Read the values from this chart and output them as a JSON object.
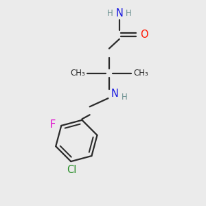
{
  "bg_color": "#ebebeb",
  "bond_color": "#2a2a2a",
  "bond_width": 1.6,
  "atom_colors": {
    "N": "#1414e0",
    "O": "#ff1500",
    "F": "#e000cc",
    "Cl": "#228B22",
    "C": "#2a2a2a",
    "H": "#6a9090"
  },
  "font_size_main": 10.5,
  "font_size_small": 8.5,
  "font_size_cl": 10.5
}
